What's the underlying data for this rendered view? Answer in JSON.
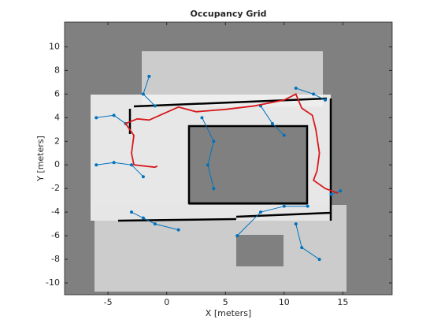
{
  "chart_data": {
    "type": "line",
    "title": "Occupancy Grid",
    "xlabel": "X [meters]",
    "ylabel": "Y [meters]",
    "xlim": [
      -8.7,
      19.2
    ],
    "ylim": [
      -11,
      12.1
    ],
    "xticks": [
      -5,
      0,
      5,
      10,
      15
    ],
    "yticks": [
      -10,
      -8,
      -6,
      -4,
      -2,
      0,
      2,
      4,
      6,
      8,
      10
    ],
    "grid": false,
    "series": [
      {
        "color": "#0072bd",
        "marker": true,
        "x": [
          -6,
          -4.5,
          -3.5,
          null,
          -6,
          -4.5,
          -3,
          -2,
          null,
          -3,
          -2,
          -1,
          1,
          null,
          -1,
          -2,
          -1.5,
          null,
          3,
          4,
          3.5,
          4,
          null,
          6,
          8,
          10,
          12,
          null,
          11,
          11.5,
          13,
          null,
          8,
          9,
          10,
          null,
          11,
          12.5,
          13.5,
          null,
          14,
          14.8
        ],
        "values": [
          4,
          4.2,
          3.5,
          null,
          0,
          0.2,
          0,
          -1,
          null,
          -4,
          -4.5,
          -5,
          -5.5,
          null,
          5,
          6,
          7.5,
          null,
          4,
          2,
          0,
          -2,
          null,
          -6,
          -4,
          -3.5,
          -3.5,
          null,
          -5,
          -7,
          -8,
          null,
          5,
          3.5,
          2.5,
          null,
          6.5,
          6,
          5.5,
          null,
          -2.5,
          -2.2
        ]
      },
      {
        "color": "#d7191c",
        "marker": false,
        "x": [
          14.6,
          13.5,
          12.5,
          12.8,
          13.0,
          12.7,
          12.4,
          11.5,
          11.0,
          10.0,
          7.5,
          5.0,
          2.5,
          1.0,
          -1.5,
          -2.5,
          -3.5,
          -2.8,
          -3.0,
          -2.8,
          -1.0,
          -0.8
        ],
        "values": [
          -2.4,
          -2.0,
          -1.3,
          -0.5,
          1.0,
          3.0,
          4.2,
          4.8,
          6.0,
          5.5,
          5.0,
          4.7,
          4.5,
          4.9,
          3.8,
          3.9,
          3.5,
          2.5,
          1.0,
          0.0,
          -0.2,
          -0.1
        ]
      }
    ]
  }
}
